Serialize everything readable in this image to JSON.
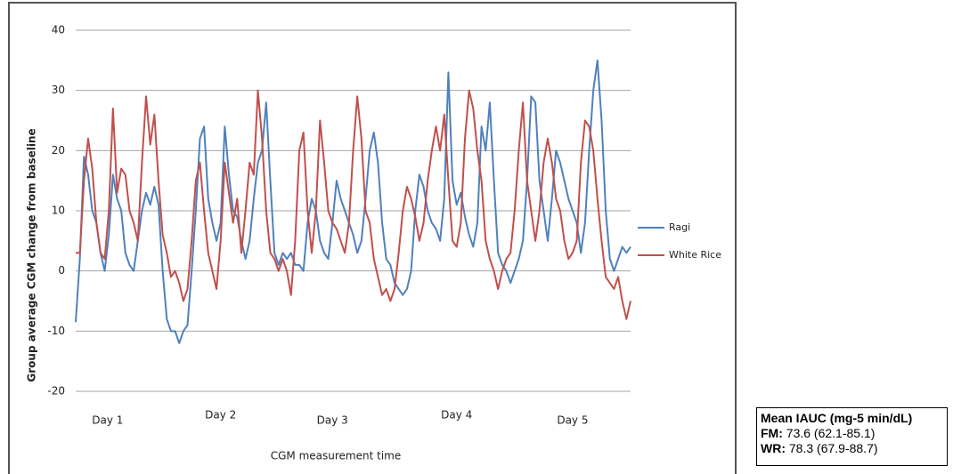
{
  "chart_data": {
    "type": "line",
    "y_label": "Group average CGM change from baseline",
    "x_label": "CGM measurement time",
    "xlim": [
      0,
      134
    ],
    "xticks": [
      {
        "value": 7.7,
        "label": "Day 1"
      },
      {
        "value": 35,
        "label": "Day 2"
      },
      {
        "value": 62,
        "label": "Day 3"
      },
      {
        "value": 92,
        "label": "Day 4"
      },
      {
        "value": 120,
        "label": "Day 5"
      }
    ],
    "ylim": [
      -20,
      40
    ],
    "yticks": [
      -20,
      -10,
      0,
      10,
      20,
      30,
      40
    ],
    "grid": true,
    "legend": "right",
    "series": [
      {
        "name": "Ragi",
        "color": "#4f81bd",
        "values": [
          -8.5,
          2,
          19,
          16,
          10,
          8,
          3,
          0,
          6,
          16,
          12,
          10,
          3,
          1,
          0,
          5,
          10,
          13,
          11,
          14,
          11,
          0,
          -8,
          -10,
          -10,
          -12,
          -10,
          -9,
          0,
          10,
          22,
          24,
          12,
          8,
          5,
          8,
          24,
          16,
          10,
          9,
          5,
          2,
          5,
          12,
          18,
          20,
          28,
          15,
          3,
          1,
          3,
          2,
          3,
          1,
          1,
          0,
          8,
          12,
          10,
          5,
          3,
          2,
          8,
          15,
          12,
          10,
          8,
          6,
          3,
          5,
          12,
          20,
          23,
          18,
          8,
          2,
          1,
          -2,
          -3,
          -4,
          -3,
          0,
          10,
          16,
          14,
          10,
          8,
          7,
          5,
          12,
          33,
          15,
          11,
          13,
          9,
          6,
          4,
          8,
          24,
          20,
          28,
          15,
          3,
          1,
          0,
          -2,
          0,
          2,
          5,
          15,
          29,
          28,
          15,
          10,
          5,
          12,
          20,
          18,
          15,
          12,
          10,
          8,
          3,
          8,
          20,
          30,
          35,
          25,
          10,
          2,
          0,
          2,
          4,
          3,
          4
        ]
      },
      {
        "name": "White Rice",
        "color": "#c0504d",
        "values": [
          3,
          3,
          15,
          22,
          17,
          8,
          3,
          2,
          10,
          27,
          13,
          17,
          16,
          10,
          8,
          5,
          18,
          29,
          21,
          26,
          15,
          6,
          3,
          -1,
          0,
          -2,
          -5,
          -3,
          5,
          15,
          18,
          10,
          3,
          0,
          -3,
          5,
          18,
          13,
          8,
          12,
          3,
          10,
          18,
          16,
          30,
          22,
          10,
          3,
          2,
          0,
          2,
          0,
          -4,
          5,
          20,
          23,
          10,
          3,
          10,
          25,
          18,
          10,
          8,
          7,
          5,
          3,
          8,
          20,
          29,
          22,
          10,
          8,
          2,
          -1,
          -4,
          -3,
          -5,
          -3,
          3,
          10,
          14,
          12,
          9,
          5,
          8,
          15,
          20,
          24,
          20,
          26,
          15,
          5,
          4,
          8,
          22,
          30,
          27,
          20,
          15,
          5,
          2,
          0,
          -3,
          0,
          2,
          3,
          10,
          20,
          28,
          15,
          10,
          5,
          10,
          18,
          22,
          18,
          12,
          10,
          5,
          2,
          3,
          5,
          18,
          25,
          24,
          20,
          12,
          5,
          -1,
          -2,
          -3,
          -1,
          -5,
          -8,
          -5
        ]
      }
    ]
  },
  "annotation": {
    "title": "Mean IAUC (mg-5 min/dL)",
    "lines": [
      {
        "label": "FM:",
        "text": "73.6 (62.1-85.1)"
      },
      {
        "label": "WR:",
        "text": "78.3 (67.9-88.7)"
      }
    ]
  }
}
